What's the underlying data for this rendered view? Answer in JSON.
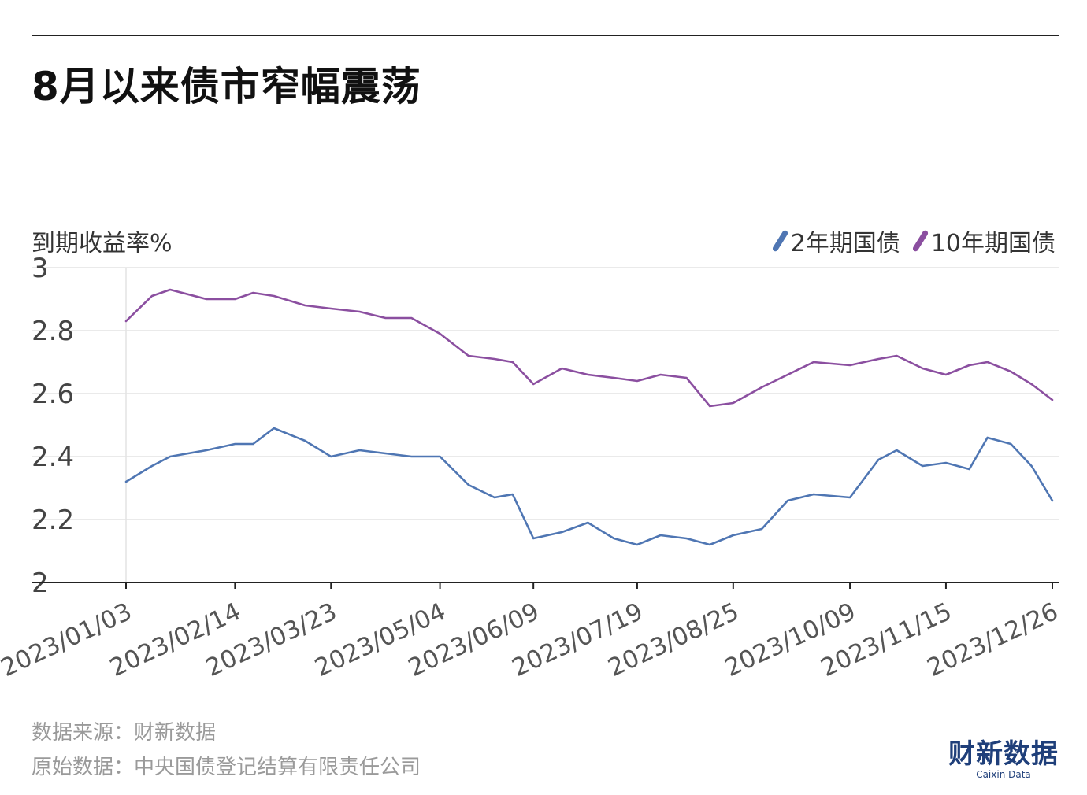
{
  "header": {
    "title": "8月以来债市窄幅震荡"
  },
  "footer": {
    "source_line": "数据来源：财新数据",
    "raw_line": "原始数据：中央国债登记结算有限责任公司"
  },
  "logo": {
    "cn": "财新数据",
    "en": "Caixin Data"
  },
  "colors": {
    "series_2y": "#4f76b3",
    "series_10y": "#8b4fa0",
    "grid": "#e3e3e3",
    "axis": "#222222",
    "tick_text": "#555555"
  },
  "chart_data": {
    "type": "line",
    "title": "8月以来债市窄幅震荡",
    "ylabel": "到期收益率%",
    "xlabel": "",
    "ylim": [
      2,
      3
    ],
    "yticks": [
      "2",
      "2.2",
      "2.4",
      "2.6",
      "2.8",
      "3"
    ],
    "ytick_values": [
      2,
      2.2,
      2.4,
      2.6,
      2.8,
      3
    ],
    "grid": true,
    "legend_position": "top-right",
    "x_start": "2023/01/03",
    "x_end": "2023/12/26",
    "xticks": [
      "2023/01/03",
      "2023/02/14",
      "2023/03/23",
      "2023/05/04",
      "2023/06/09",
      "2023/07/19",
      "2023/08/25",
      "2023/10/09",
      "2023/11/15",
      "2023/12/26"
    ],
    "x": [
      "2023/01/03",
      "2023/01/13",
      "2023/01/20",
      "2023/02/03",
      "2023/02/14",
      "2023/02/21",
      "2023/03/01",
      "2023/03/13",
      "2023/03/23",
      "2023/04/03",
      "2023/04/13",
      "2023/04/23",
      "2023/05/04",
      "2023/05/15",
      "2023/05/25",
      "2023/06/01",
      "2023/06/09",
      "2023/06/20",
      "2023/06/30",
      "2023/07/10",
      "2023/07/19",
      "2023/07/28",
      "2023/08/07",
      "2023/08/16",
      "2023/08/25",
      "2023/09/05",
      "2023/09/15",
      "2023/09/25",
      "2023/10/09",
      "2023/10/20",
      "2023/10/27",
      "2023/11/06",
      "2023/11/15",
      "2023/11/24",
      "2023/12/01",
      "2023/12/10",
      "2023/12/18",
      "2023/12/26"
    ],
    "series": [
      {
        "name": "2年期国债",
        "color": "#4f76b3",
        "values": [
          2.32,
          2.37,
          2.4,
          2.42,
          2.44,
          2.44,
          2.49,
          2.45,
          2.4,
          2.42,
          2.41,
          2.4,
          2.4,
          2.31,
          2.27,
          2.28,
          2.14,
          2.16,
          2.19,
          2.14,
          2.12,
          2.15,
          2.14,
          2.12,
          2.15,
          2.17,
          2.26,
          2.28,
          2.27,
          2.39,
          2.42,
          2.37,
          2.38,
          2.36,
          2.46,
          2.44,
          2.37,
          2.26
        ]
      },
      {
        "name": "10年期国债",
        "color": "#8b4fa0",
        "values": [
          2.83,
          2.91,
          2.93,
          2.9,
          2.9,
          2.92,
          2.91,
          2.88,
          2.87,
          2.86,
          2.84,
          2.84,
          2.79,
          2.72,
          2.71,
          2.7,
          2.63,
          2.68,
          2.66,
          2.65,
          2.64,
          2.66,
          2.65,
          2.56,
          2.57,
          2.62,
          2.66,
          2.7,
          2.69,
          2.71,
          2.72,
          2.68,
          2.66,
          2.69,
          2.7,
          2.67,
          2.63,
          2.58
        ]
      }
    ]
  }
}
